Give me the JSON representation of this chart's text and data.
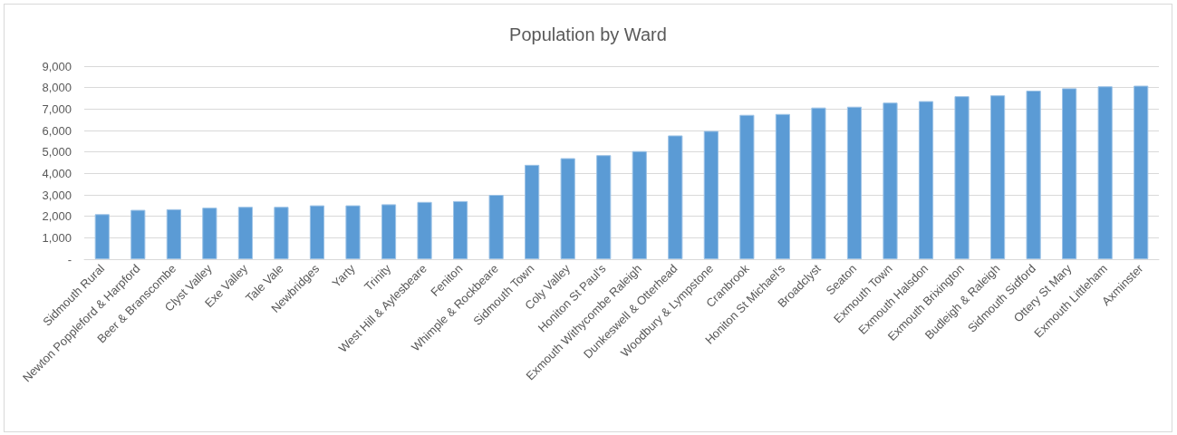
{
  "chart_data": {
    "type": "bar",
    "title": "Population by Ward",
    "categories": [
      "Sidmouth Rural",
      "Newton Poppleford & Harpford",
      "Beer & Branscombe",
      "Clyst Valley",
      "Exe Valley",
      "Tale Vale",
      "Newbridges",
      "Yarty",
      "Trinity",
      "West Hill & Aylesbeare",
      "Feniton",
      "Whimple & Rockbeare",
      "Sidmouth Town",
      "Coly Valley",
      "Honiton St Paul's",
      "Exmouth Withycombe Raleigh",
      "Dunkeswell & Otterhead",
      "Woodbury & Lympstone",
      "Cranbrook",
      "Honiton St Michael's",
      "Broadclyst",
      "Seaton",
      "Exmouth Town",
      "Exmouth Halsdon",
      "Exmouth Brixington",
      "Budleigh & Raleigh",
      "Sidmouth Sidford",
      "Ottery St Mary",
      "Exmouth Littleham",
      "Axminster"
    ],
    "values": [
      2100,
      2300,
      2330,
      2400,
      2440,
      2440,
      2510,
      2510,
      2560,
      2670,
      2710,
      3000,
      4400,
      4710,
      4850,
      5040,
      5770,
      5980,
      6730,
      6770,
      7070,
      7110,
      7300,
      7370,
      7600,
      7640,
      7860,
      7970,
      8060,
      8090
    ],
    "color": "#5b9bd5",
    "ylim": [
      0,
      9000
    ],
    "yticks": [
      {
        "value": 0,
        "label": "-"
      },
      {
        "value": 1000,
        "label": "1,000"
      },
      {
        "value": 2000,
        "label": "2,000"
      },
      {
        "value": 3000,
        "label": "3,000"
      },
      {
        "value": 4000,
        "label": "4,000"
      },
      {
        "value": 5000,
        "label": "5,000"
      },
      {
        "value": 6000,
        "label": "6,000"
      },
      {
        "value": 7000,
        "label": "7,000"
      },
      {
        "value": 8000,
        "label": "8,000"
      },
      {
        "value": 9000,
        "label": "9,000"
      }
    ],
    "grid": "y"
  }
}
